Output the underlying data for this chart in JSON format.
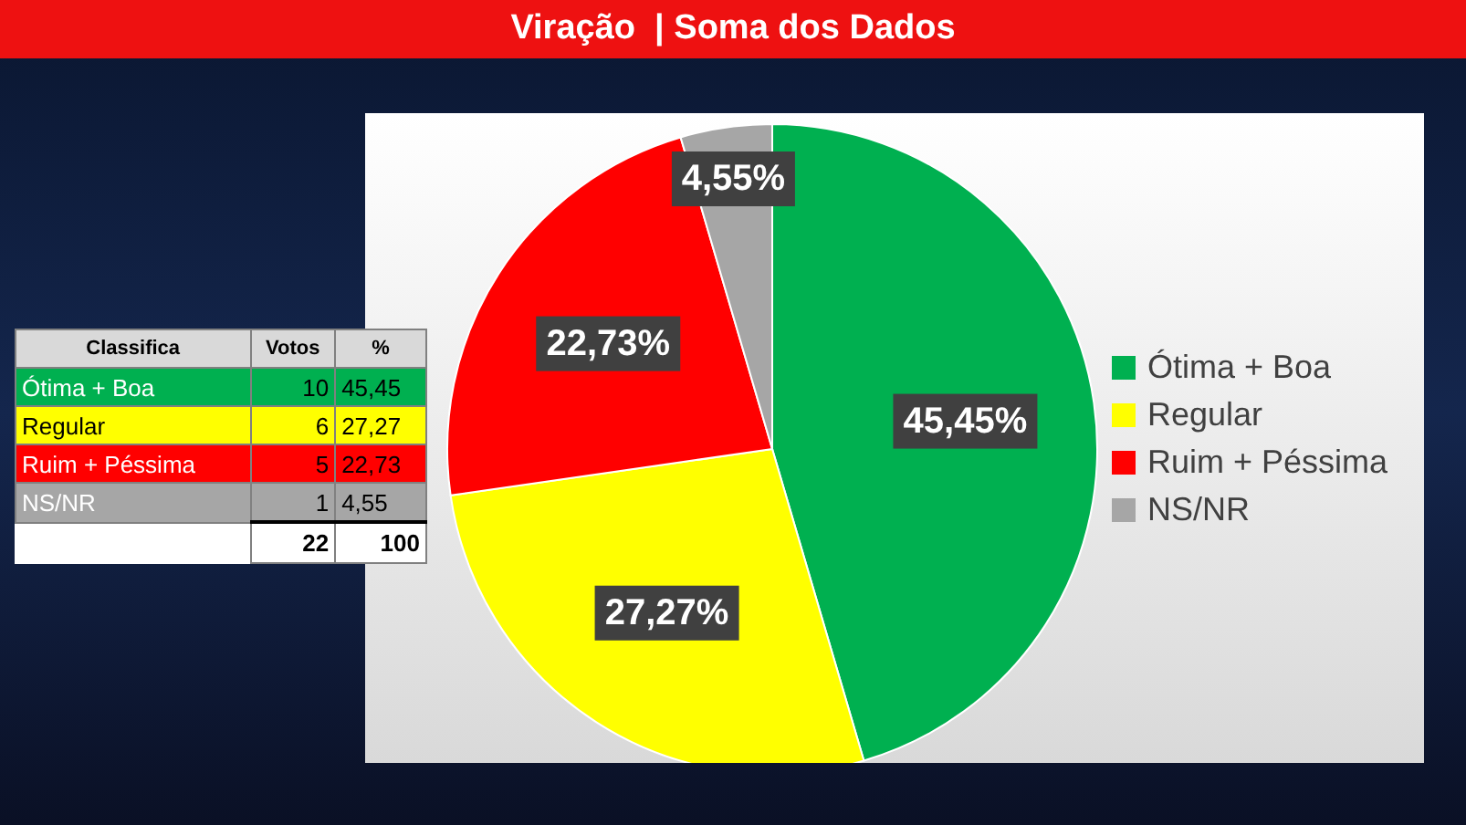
{
  "chart_data": {
    "type": "pie",
    "title": "Viração  | Soma dos Dados",
    "categories": [
      "Ótima + Boa",
      "Regular",
      "Ruim + Péssima",
      "NS/NR"
    ],
    "values": [
      45.45,
      27.27,
      22.73,
      4.55
    ],
    "value_labels": [
      "45,45%",
      "27,27%",
      "22,73%",
      "4,55%"
    ],
    "colors": [
      "#00b050",
      "#ffff00",
      "#ff0000",
      "#a6a6a6"
    ],
    "legend": "right",
    "annotations": [
      "Classifica",
      "Votos",
      "%",
      "45,45",
      "27,27",
      "22,73",
      "4,55",
      "22",
      "100",
      "10",
      "6",
      "5",
      "1"
    ]
  }
}
